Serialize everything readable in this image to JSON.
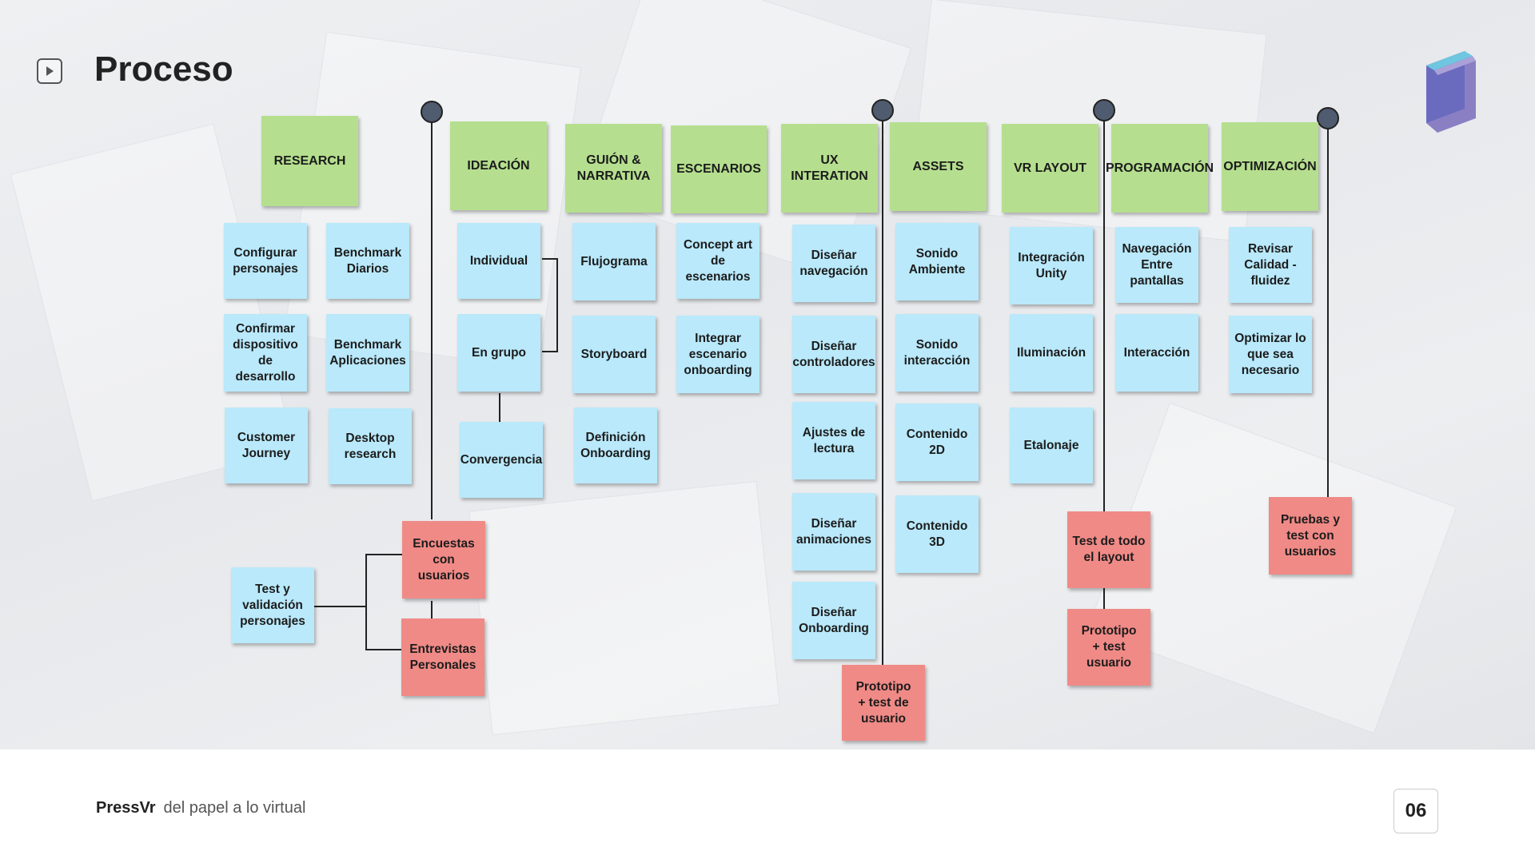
{
  "page": {
    "title": "Proceso"
  },
  "footer": {
    "brand": "PressVr",
    "tagline": "del papel a lo virtual",
    "page_number": "06"
  },
  "icons": {
    "play": "play-icon",
    "logo": "book-logo-icon"
  },
  "colors": {
    "header_note": "#b5df8e",
    "task_note": "#b9e9fb",
    "milestone_note": "#f08a86",
    "pin": "#4f5b6e"
  },
  "headers": [
    "RESEARCH",
    "IDEACIÓN",
    "GUIÓN &\nNARRATIVA",
    "ESCENARIOS",
    "UX\nINTERATION",
    "ASSETS",
    "VR LAYOUT",
    "PROGRAMACIÓN",
    "OPTIMIZACIÓN"
  ],
  "research": [
    "Configurar\npersonajes",
    "Benchmark\nDiarios",
    "Confirmar\ndispositivo\nde\ndesarrollo",
    "Benchmark\nAplicaciones",
    "Customer\nJourney",
    "Desktop\nresearch",
    "Test y\nvalidación\npersonajes"
  ],
  "ideacion": [
    "Individual",
    "En grupo",
    "Convergencia"
  ],
  "guion": [
    "Flujograma",
    "Storyboard",
    "Definición\nOnboarding"
  ],
  "escenarios": [
    "Concept art\nde escenarios",
    "Integrar\nescenario\nonboarding"
  ],
  "ux": [
    "Diseñar\nnavegación",
    "Diseñar\ncontroladores",
    "Ajustes de\nlectura",
    "Diseñar\nanimaciones",
    "Diseñar\nOnboarding"
  ],
  "assets": [
    "Sonido\nAmbiente",
    "Sonido\ninteracción",
    "Contenido\n2D",
    "Contenido\n3D"
  ],
  "vrlayout": [
    "Integración\nUnity",
    "Iluminación",
    "Etalonaje"
  ],
  "programacion": [
    "Navegación\nEntre pantallas",
    "Interacción"
  ],
  "optimizacion": [
    "Revisar\nCalidad - fluidez",
    "Optimizar lo\nque sea\nnecesario"
  ],
  "milestones": [
    "Encuestas\ncon usuarios",
    "Entrevistas\nPersonales",
    "Prototipo\n+ test de\nusuario",
    "Test de todo\nel layout",
    "Prototipo\n+ test usuario",
    "Pruebas y\ntest con\nusuarios"
  ]
}
